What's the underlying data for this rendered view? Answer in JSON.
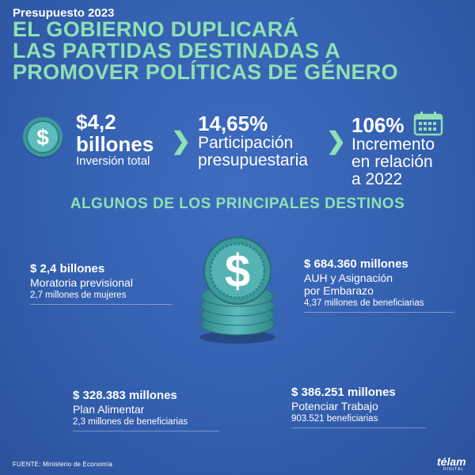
{
  "header": {
    "kicker": "Presupuesto 2023",
    "title_lines": [
      "EL GOBIERNO DUPLICARÁ",
      "LAS PARTIDAS DESTINADAS A",
      "PROMOVER POLÍTICAS DE GÉNERO"
    ]
  },
  "stats": [
    {
      "value": "$4,2",
      "unit": "billones",
      "label": "Inversión total",
      "icon": "coin-icon"
    },
    {
      "value": "14,65%",
      "label_line1": "Participación",
      "label_line2": "presupuestaria"
    },
    {
      "value": "106%",
      "label_line1": "Incremento",
      "label_line2": "en relación",
      "label_line3": "a 2022",
      "icon": "calendar-icon"
    }
  ],
  "section_title": "ALGUNOS DE LOS PRINCIPALES DESTINOS",
  "destinations": [
    {
      "amount": "$ 2,4 billones",
      "name": "Moratoria previsional",
      "note": "2,7 millones de mujeres"
    },
    {
      "amount": "$ 684.360 millones",
      "name_line1": "AUH y Asignación",
      "name_line2": "por Embarazo",
      "note": "4,37 millones de beneficiarias"
    },
    {
      "amount": "$ 328.383 millones",
      "name": "Plan Alimentar",
      "note": "2,3 millones de beneficiarias"
    },
    {
      "amount": "$ 386.251 millones",
      "name": "Potenciar Trabajo",
      "note": "903.521 beneficiarias"
    }
  ],
  "footer": {
    "source": "FUENTE: Ministerio de Economía",
    "logo": "télam",
    "logo_sub": "DIGITAL"
  },
  "colors": {
    "background": "#3460b0",
    "accent": "#8fe0b4",
    "coin": "#4fa6a8"
  }
}
